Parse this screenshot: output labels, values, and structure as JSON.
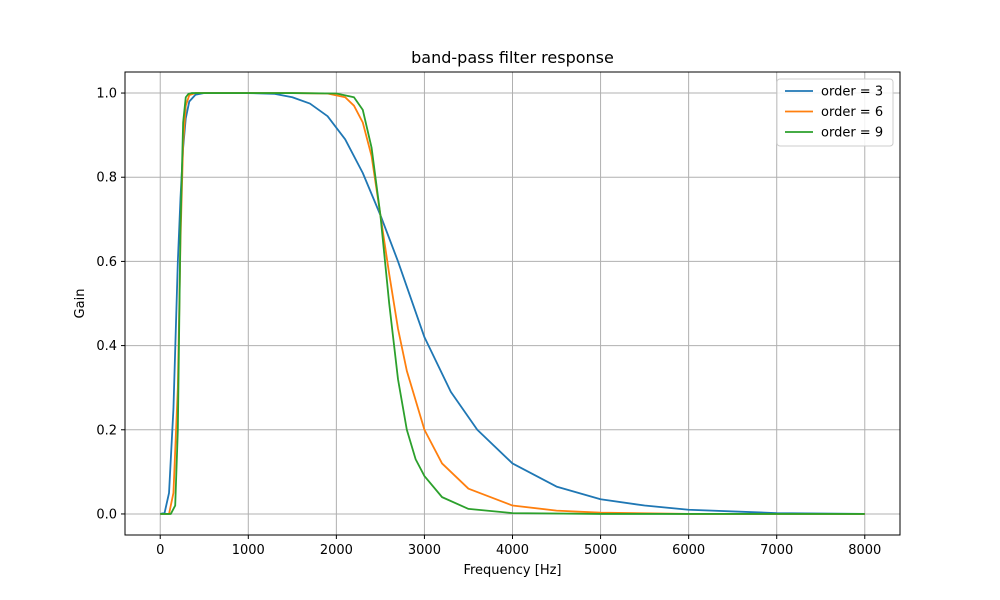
{
  "chart_data": {
    "type": "line",
    "title": "band-pass filter response",
    "xlabel": "Frequency [Hz]",
    "ylabel": "Gain",
    "xlim": [
      -400,
      8400
    ],
    "ylim": [
      -0.05,
      1.05
    ],
    "xticks": [
      0,
      1000,
      2000,
      3000,
      4000,
      5000,
      6000,
      7000,
      8000
    ],
    "yticks": [
      0.0,
      0.2,
      0.4,
      0.6,
      0.8,
      1.0
    ],
    "ytick_labels": [
      "0.0",
      "0.2",
      "0.4",
      "0.6",
      "0.8",
      "1.0"
    ],
    "grid": true,
    "legend_position": "top-right",
    "series": [
      {
        "name": "order = 3",
        "color": "#1f77b4",
        "x": [
          0,
          50,
          100,
          150,
          200,
          230,
          260,
          290,
          330,
          400,
          500,
          700,
          1000,
          1300,
          1500,
          1700,
          1900,
          2100,
          2300,
          2500,
          2700,
          3000,
          3300,
          3600,
          4000,
          4500,
          5000,
          5500,
          6000,
          7000,
          8000
        ],
        "y": [
          0.0,
          0.003,
          0.05,
          0.25,
          0.6,
          0.75,
          0.87,
          0.94,
          0.98,
          0.996,
          1.0,
          1.0,
          1.0,
          0.998,
          0.99,
          0.975,
          0.945,
          0.89,
          0.81,
          0.71,
          0.6,
          0.42,
          0.29,
          0.2,
          0.12,
          0.065,
          0.035,
          0.02,
          0.01,
          0.002,
          0.0
        ]
      },
      {
        "name": "order = 6",
        "color": "#ff7f0e",
        "x": [
          0,
          100,
          150,
          200,
          230,
          260,
          290,
          330,
          400,
          500,
          1000,
          1500,
          1900,
          2100,
          2200,
          2300,
          2400,
          2500,
          2600,
          2700,
          2800,
          3000,
          3200,
          3500,
          4000,
          4500,
          5000,
          6000,
          8000
        ],
        "y": [
          0.0,
          0.0,
          0.05,
          0.3,
          0.65,
          0.88,
          0.97,
          0.995,
          1.0,
          1.0,
          1.0,
          1.0,
          0.999,
          0.99,
          0.97,
          0.93,
          0.85,
          0.71,
          0.57,
          0.44,
          0.34,
          0.2,
          0.12,
          0.06,
          0.02,
          0.008,
          0.003,
          0.0,
          0.0
        ]
      },
      {
        "name": "order = 9",
        "color": "#2ca02c",
        "x": [
          0,
          120,
          170,
          200,
          230,
          260,
          290,
          320,
          360,
          500,
          1000,
          1500,
          2000,
          2200,
          2300,
          2400,
          2500,
          2600,
          2700,
          2800,
          2900,
          3000,
          3200,
          3500,
          4000,
          5000,
          8000
        ],
        "y": [
          0.0,
          0.0,
          0.02,
          0.2,
          0.68,
          0.93,
          0.99,
          0.998,
          1.0,
          1.0,
          1.0,
          1.0,
          0.999,
          0.99,
          0.96,
          0.87,
          0.71,
          0.5,
          0.32,
          0.2,
          0.13,
          0.09,
          0.04,
          0.012,
          0.002,
          0.0,
          0.0
        ]
      }
    ]
  }
}
